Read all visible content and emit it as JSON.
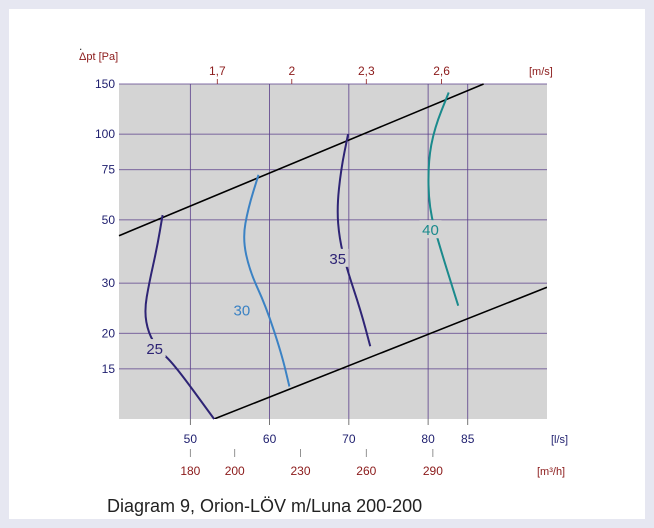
{
  "caption": "Diagram 9, Orion-LÖV m/Luna 200-200",
  "stray_mark": ".",
  "chart_data": {
    "type": "line",
    "ylabel": "Δpt [Pa]",
    "y_scale": "log",
    "ylim": [
      10,
      150
    ],
    "y_ticks": [
      15,
      20,
      30,
      50,
      75,
      100,
      150
    ],
    "x_unit_bottom": "[l/s]",
    "xlim": [
      41,
      95
    ],
    "x_ticks_ls": [
      50,
      60,
      70,
      80,
      85
    ],
    "x_ticks_m3h": {
      "unit": "[m³/h]",
      "labels": [
        "180",
        "200",
        "230",
        "260",
        "290"
      ],
      "ls_values": [
        50,
        55.6,
        63.9,
        72.2,
        80.6
      ]
    },
    "x_ticks_ms": {
      "unit": "[m/s]",
      "labels": [
        "1,7",
        "2",
        "2,3",
        "2,6"
      ],
      "ls_values": [
        53.4,
        62.8,
        72.2,
        81.7
      ]
    },
    "grid": true,
    "colors": {
      "plot_bg": "#d4d4d4",
      "grid": "#5a3f8a",
      "boundary": "#000000",
      "axis_label": "#8b1a1a"
    },
    "boundaries": [
      {
        "x": [
          41,
          87
        ],
        "y": [
          44,
          150
        ]
      },
      {
        "x": [
          53,
          95
        ],
        "y": [
          10,
          29
        ]
      }
    ],
    "series": [
      {
        "name": "25",
        "color": "#2e2475",
        "label_at": [
          45.5,
          17.6
        ],
        "x": [
          46.5,
          45.8,
          44.8,
          44.2,
          44.7,
          46.0,
          48.0,
          53.0
        ],
        "y": [
          52,
          40,
          30,
          24,
          20,
          17.5,
          15.5,
          10
        ]
      },
      {
        "name": "30",
        "color": "#3b82c4",
        "label_at": [
          56.5,
          24
        ],
        "x": [
          58.6,
          57.3,
          56.6,
          57.5,
          59.5,
          61.5,
          62.5
        ],
        "y": [
          72,
          55,
          43,
          33,
          25,
          17,
          13
        ]
      },
      {
        "name": "35",
        "color": "#2e2475",
        "label_at": [
          68.6,
          36.5
        ],
        "x": [
          69.9,
          69.0,
          68.5,
          68.8,
          69.7,
          71.5,
          72.7
        ],
        "y": [
          100,
          75,
          55,
          43,
          34,
          24,
          18
        ]
      },
      {
        "name": "40",
        "color": "#1a8a8c",
        "label_at": [
          80.3,
          46
        ],
        "x": [
          82.6,
          80.8,
          80.0,
          80.1,
          81.5,
          83.8
        ],
        "y": [
          140,
          105,
          80,
          55,
          40,
          25
        ]
      }
    ]
  }
}
